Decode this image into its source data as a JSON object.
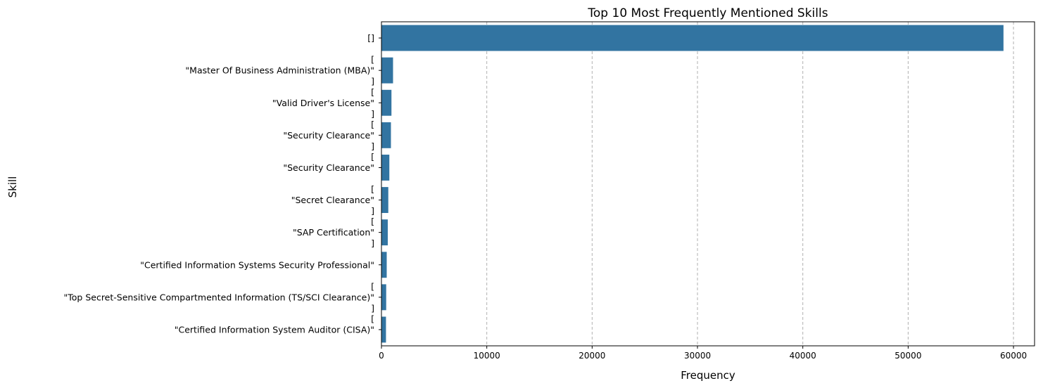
{
  "chart_data": {
    "type": "bar",
    "orientation": "horizontal",
    "title": "Top 10 Most Frequently Mentioned Skills",
    "xlabel": "Frequency",
    "ylabel": "Skill",
    "xlim": [
      0,
      62000
    ],
    "xticks": [
      0,
      10000,
      20000,
      30000,
      40000,
      50000,
      60000
    ],
    "grid": "x-dashed",
    "bar_color": "#3274a1",
    "categories": [
      [
        "[]"
      ],
      [
        "[",
        "\"Master Of Business Administration (MBA)\"",
        "]"
      ],
      [
        "[",
        "\"Valid Driver's License\"",
        "]"
      ],
      [
        "[",
        "\"Security Clearance\"",
        "]"
      ],
      [
        "[",
        "\"Security Clearance\""
      ],
      [
        "[",
        "\"Secret Clearance\"",
        "]"
      ],
      [
        "[",
        "\"SAP Certification\"",
        "]"
      ],
      [
        "\"Certified Information Systems Security Professional\""
      ],
      [
        "[",
        "\"Top Secret-Sensitive Compartmented Information (TS/SCI Clearance)\"",
        "]"
      ],
      [
        "[",
        "\"Certified Information System Auditor (CISA)\""
      ]
    ],
    "values": [
      59050,
      1100,
      950,
      900,
      750,
      650,
      600,
      500,
      450,
      430
    ]
  }
}
